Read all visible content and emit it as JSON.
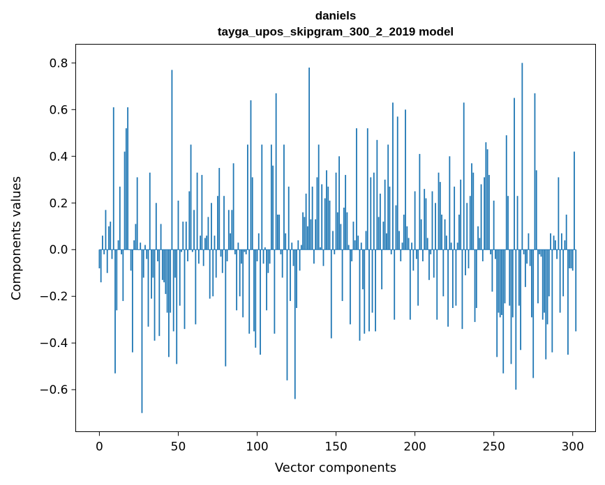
{
  "chart_data": {
    "type": "bar",
    "title": "daniels",
    "subtitle": "tayga_upos_skipgram_300_2_2019 model",
    "xlabel": "Vector components",
    "ylabel": "Components values",
    "xlim": [
      -15,
      314.5
    ],
    "ylim": [
      -0.78,
      0.88
    ],
    "xticks": [
      0,
      50,
      100,
      150,
      200,
      250,
      300
    ],
    "yticks": [
      -0.6,
      -0.4,
      -0.2,
      0.0,
      0.2,
      0.4,
      0.6,
      0.8
    ],
    "xtick_labels": [
      "0",
      "50",
      "100",
      "150",
      "200",
      "250",
      "300"
    ],
    "ytick_labels": [
      "−0.6",
      "−0.4",
      "−0.2",
      "0.0",
      "0.2",
      "0.4",
      "0.6",
      "0.8"
    ],
    "bar_color": "#1f77b4",
    "values": [
      -0.08,
      -0.14,
      0.06,
      -0.02,
      0.17,
      -0.1,
      0.1,
      0.12,
      -0.04,
      0.61,
      -0.53,
      -0.26,
      0.04,
      0.27,
      -0.02,
      -0.22,
      0.42,
      0.52,
      0.61,
      0.0,
      -0.09,
      -0.44,
      0.04,
      0.11,
      0.31,
      0.0,
      0.03,
      -0.7,
      -0.12,
      0.02,
      -0.04,
      -0.33,
      0.33,
      -0.21,
      -0.12,
      -0.39,
      0.2,
      -0.05,
      -0.37,
      0.11,
      -0.13,
      -0.14,
      -0.19,
      -0.27,
      -0.46,
      -0.27,
      0.77,
      -0.35,
      -0.12,
      -0.49,
      0.21,
      -0.24,
      -0.01,
      0.12,
      -0.34,
      0.12,
      -0.05,
      0.25,
      0.45,
      -0.01,
      0.17,
      -0.32,
      0.33,
      -0.06,
      0.06,
      0.32,
      -0.07,
      0.05,
      0.06,
      0.14,
      -0.21,
      0.2,
      -0.2,
      0.06,
      -0.12,
      0.23,
      0.35,
      -0.03,
      -0.1,
      0.23,
      -0.5,
      -0.05,
      0.17,
      0.07,
      0.17,
      0.37,
      -0.02,
      -0.26,
      0.03,
      -0.2,
      -0.06,
      -0.29,
      -0.01,
      -0.02,
      0.45,
      -0.36,
      0.64,
      0.31,
      -0.35,
      -0.42,
      -0.05,
      0.07,
      -0.45,
      0.45,
      -0.06,
      0.01,
      -0.26,
      -0.1,
      -0.06,
      0.45,
      0.36,
      -0.36,
      0.67,
      0.15,
      0.15,
      -0.02,
      -0.12,
      0.45,
      0.07,
      -0.56,
      0.27,
      -0.22,
      0.03,
      -0.07,
      -0.64,
      -0.25,
      0.04,
      -0.09,
      0.02,
      0.16,
      0.14,
      0.24,
      0.1,
      0.78,
      0.13,
      0.27,
      -0.06,
      0.13,
      0.31,
      0.45,
      0.01,
      0.28,
      -0.07,
      0.22,
      0.34,
      0.27,
      0.21,
      -0.38,
      0.08,
      -0.02,
      0.33,
      0.16,
      0.4,
      0.11,
      -0.22,
      0.18,
      0.32,
      0.16,
      0.02,
      -0.32,
      -0.05,
      0.12,
      0.04,
      0.52,
      0.06,
      -0.39,
      0.03,
      -0.17,
      -0.36,
      0.08,
      0.52,
      -0.35,
      0.31,
      -0.27,
      0.33,
      -0.35,
      0.47,
      0.14,
      0.24,
      -0.17,
      0.12,
      0.3,
      0.07,
      0.45,
      0.27,
      -0.02,
      0.63,
      -0.3,
      0.19,
      0.57,
      0.08,
      -0.05,
      0.03,
      0.15,
      0.6,
      0.1,
      0.05,
      -0.3,
      0.03,
      -0.09,
      0.25,
      -0.04,
      -0.24,
      0.41,
      0.13,
      -0.05,
      0.26,
      0.22,
      0.05,
      -0.13,
      -0.02,
      0.25,
      -0.12,
      0.2,
      -0.3,
      0.33,
      0.29,
      0.15,
      -0.2,
      0.13,
      0.06,
      -0.33,
      0.4,
      0.03,
      -0.25,
      0.27,
      -0.24,
      0.03,
      0.15,
      0.3,
      -0.34,
      0.63,
      -0.11,
      0.2,
      -0.08,
      0.23,
      0.37,
      0.33,
      -0.31,
      -0.25,
      0.1,
      0.05,
      0.28,
      -0.05,
      0.31,
      0.46,
      0.43,
      0.32,
      -0.02,
      -0.18,
      0.21,
      -0.04,
      -0.46,
      -0.27,
      -0.29,
      -0.28,
      -0.53,
      -0.23,
      0.49,
      0.23,
      -0.24,
      -0.49,
      -0.29,
      0.65,
      -0.6,
      0.23,
      -0.24,
      -0.43,
      0.8,
      -0.02,
      -0.16,
      -0.06,
      0.07,
      -0.07,
      -0.29,
      -0.55,
      0.67,
      0.34,
      -0.23,
      -0.02,
      -0.03,
      -0.3,
      -0.27,
      -0.47,
      -0.32,
      -0.2,
      0.07,
      -0.44,
      0.06,
      0.04,
      -0.04,
      0.31,
      -0.27,
      0.07,
      -0.2,
      0.04,
      0.15,
      -0.45,
      -0.08,
      -0.08,
      -0.09,
      0.42,
      -0.35
    ]
  }
}
